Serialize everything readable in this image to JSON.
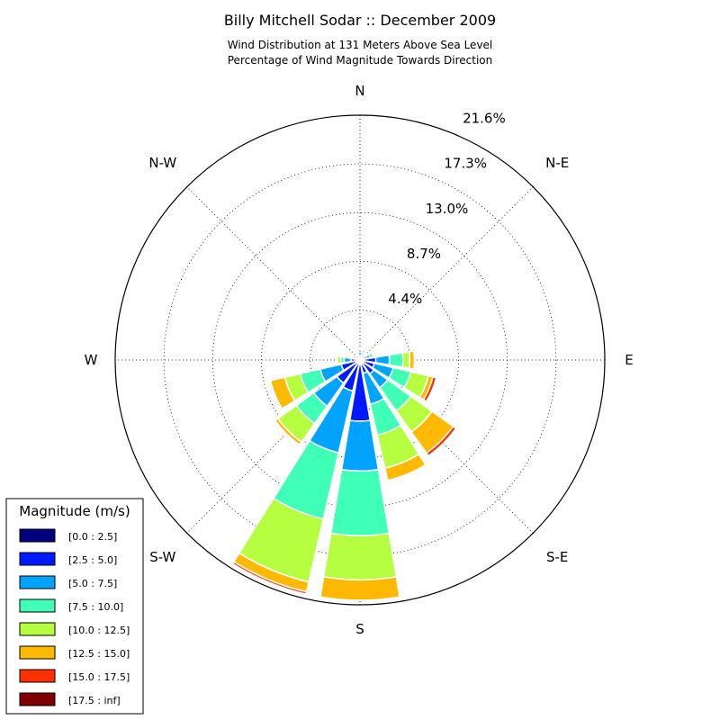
{
  "chart_data": {
    "type": "windrose",
    "title": "Billy Mitchell Sodar :: December 2009",
    "subtitle_lines": [
      "Wind Distribution at 131 Meters Above Sea Level",
      "Percentage of Wind Magnitude Towards Direction"
    ],
    "direction_labels": [
      "N",
      "N-E",
      "E",
      "S-E",
      "S",
      "S-W",
      "W",
      "N-W"
    ],
    "radial_tick_labels": [
      "4.4%",
      "8.7%",
      "13.0%",
      "17.3%",
      "21.6%"
    ],
    "radial_ticks": [
      4.4,
      8.7,
      13.0,
      17.3,
      21.6
    ],
    "rmax": 21.6,
    "grid": true,
    "legend": {
      "title": "Magnitude (m/s)",
      "placement": "bottom-left",
      "bins": [
        {
          "label": "[0.0 : 2.5]",
          "color": "#00007f"
        },
        {
          "label": "[2.5 : 5.0]",
          "color": "#0019ff"
        },
        {
          "label": "[5.0 : 7.5]",
          "color": "#00a4ff"
        },
        {
          "label": "[7.5 : 10.0]",
          "color": "#40ffb6"
        },
        {
          "label": "[10.0 : 12.5]",
          "color": "#b6ff40"
        },
        {
          "label": "[12.5 : 15.0]",
          "color": "#ffb900"
        },
        {
          "label": "[15.0 : 17.5]",
          "color": "#ff3000"
        },
        {
          "label": "[17.5 : inf]",
          "color": "#7f0000"
        }
      ]
    },
    "sectors": [
      {
        "dir": 0,
        "cum": [
          0.3,
          0.7,
          0.9,
          0.9,
          0.9,
          0.9,
          0.9,
          0.9
        ]
      },
      {
        "dir": 22.5,
        "cum": [
          0.2,
          0.5,
          0.7,
          0.9,
          1.0,
          1.0,
          1.0,
          1.0
        ]
      },
      {
        "dir": 45,
        "cum": [
          0.1,
          0.3,
          0.5,
          0.6,
          0.6,
          0.6,
          0.6,
          0.6
        ]
      },
      {
        "dir": 67.5,
        "cum": [
          0.2,
          0.6,
          0.9,
          1.2,
          1.2,
          1.2,
          1.2,
          1.2
        ]
      },
      {
        "dir": 90,
        "cum": [
          0.3,
          1.4,
          2.6,
          3.8,
          4.4,
          4.8,
          4.9,
          4.9
        ]
      },
      {
        "dir": 112.5,
        "cum": [
          0.3,
          1.3,
          3.0,
          4.6,
          6.2,
          6.6,
          6.9,
          6.9
        ]
      },
      {
        "dir": 135,
        "cum": [
          0.3,
          1.5,
          3.0,
          5.5,
          7.8,
          10.1,
          10.4,
          10.4
        ]
      },
      {
        "dir": 157.5,
        "cum": [
          0.3,
          1.2,
          4.0,
          6.8,
          9.8,
          10.9,
          10.9,
          10.9
        ]
      },
      {
        "dir": 180,
        "cum": [
          0.3,
          5.4,
          9.8,
          15.5,
          19.4,
          21.2,
          21.2,
          21.2
        ]
      },
      {
        "dir": 202.5,
        "cum": [
          0.3,
          2.8,
          8.4,
          14.4,
          20.1,
          21.0,
          21.2,
          21.2
        ]
      },
      {
        "dir": 225,
        "cum": [
          0.3,
          2.5,
          5.0,
          6.9,
          8.9,
          9.2,
          9.3,
          9.3
        ]
      },
      {
        "dir": 247.5,
        "cum": [
          0.3,
          1.7,
          3.6,
          5.4,
          6.8,
          8.1,
          8.1,
          8.1
        ]
      },
      {
        "dir": 270,
        "cum": [
          0.3,
          0.8,
          1.4,
          1.7,
          2.0,
          2.0,
          2.0,
          2.0
        ]
      },
      {
        "dir": 292.5,
        "cum": [
          0.2,
          0.4,
          0.6,
          0.7,
          0.8,
          0.8,
          0.8,
          0.8
        ]
      },
      {
        "dir": 315,
        "cum": [
          0.1,
          0.2,
          0.3,
          0.3,
          0.3,
          0.3,
          0.3,
          0.3
        ]
      },
      {
        "dir": 337.5,
        "cum": [
          0.2,
          0.4,
          0.5,
          0.5,
          0.5,
          0.5,
          0.5,
          0.5
        ]
      }
    ]
  }
}
